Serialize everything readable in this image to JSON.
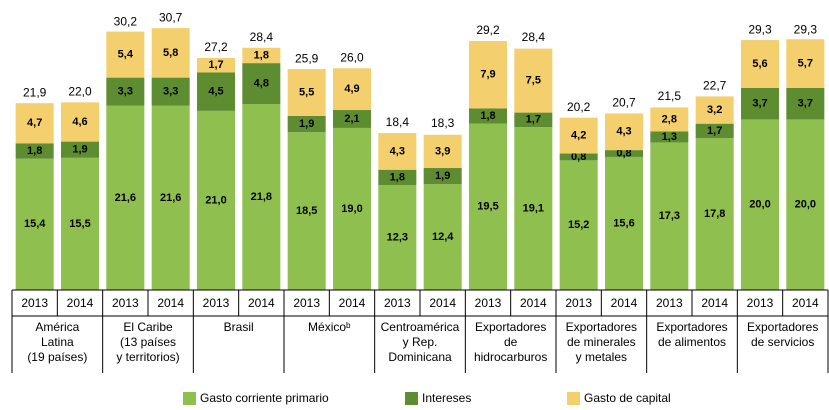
{
  "chart_data": {
    "type": "stacked_bar",
    "categories": [
      "2013",
      "2014",
      "2013",
      "2014",
      "2013",
      "2014",
      "2013",
      "2014",
      "2013",
      "2014",
      "2013",
      "2014",
      "2013",
      "2014",
      "2013",
      "2014",
      "2013",
      "2014"
    ],
    "groups": [
      [
        "América",
        "Latina",
        "(19 países)"
      ],
      [
        "El Caribe",
        "(13 países",
        "y territorios)"
      ],
      [
        "Brasil"
      ],
      [
        "Méxicoᵇ"
      ],
      [
        "Centroamérica",
        "y Rep.",
        "Dominicana"
      ],
      [
        "Exportadores",
        "de",
        "hidrocarburos"
      ],
      [
        "Exportadores",
        "de minerales",
        "y metales"
      ],
      [
        "Exportadores",
        "de alimentos"
      ],
      [
        "Exportadores",
        "de servicios"
      ]
    ],
    "series": [
      {
        "name": "Gasto corriente primario",
        "color": "#8fbf4f",
        "values": [
          15.4,
          15.5,
          21.6,
          21.6,
          21.0,
          21.8,
          18.5,
          19.0,
          12.3,
          12.4,
          19.5,
          19.1,
          15.2,
          15.6,
          17.3,
          17.8,
          20.0,
          20.0
        ],
        "value_labels": [
          "15,4",
          "15,5",
          "21,6",
          "21,6",
          "21,0",
          "21,8",
          "18,5",
          "19,0",
          "12,3",
          "12,4",
          "19,5",
          "19,1",
          "15,2",
          "15,6",
          "17,3",
          "17,8",
          "20,0",
          "20,0"
        ]
      },
      {
        "name": "Intereses",
        "color": "#5e8c31",
        "values": [
          1.8,
          1.9,
          3.3,
          3.3,
          4.5,
          4.8,
          1.9,
          2.1,
          1.8,
          1.9,
          1.8,
          1.7,
          0.8,
          0.8,
          1.3,
          1.7,
          3.7,
          3.7
        ],
        "value_labels": [
          "1,8",
          "1,9",
          "3,3",
          "3,3",
          "4,5",
          "4,8",
          "1,9",
          "2,1",
          "1,8",
          "1,9",
          "1,8",
          "1,7",
          "0,8",
          "0,8",
          "1,3",
          "1,7",
          "3,7",
          "3,7"
        ]
      },
      {
        "name": "Gasto de capital",
        "color": "#f4cf6e",
        "values": [
          4.7,
          4.6,
          5.4,
          5.8,
          1.7,
          1.8,
          5.5,
          4.9,
          4.3,
          3.9,
          7.9,
          7.5,
          4.2,
          4.3,
          2.8,
          3.2,
          5.6,
          5.7
        ],
        "value_labels": [
          "4,7",
          "4,6",
          "5,4",
          "5,8",
          "1,7",
          "1,8",
          "5,5",
          "4,9",
          "4,3",
          "3,9",
          "7,9",
          "7,5",
          "4,2",
          "4,3",
          "2,8",
          "3,2",
          "5,6",
          "5,7"
        ]
      }
    ],
    "totals": [
      21.9,
      22.0,
      30.2,
      30.7,
      27.2,
      28.4,
      25.9,
      26.0,
      18.4,
      18.3,
      29.2,
      28.4,
      20.2,
      20.7,
      21.5,
      22.7,
      29.3,
      29.3
    ],
    "total_labels": [
      "21,9",
      "22,0",
      "30,2",
      "30,7",
      "27,2",
      "28,4",
      "25,9",
      "26,0",
      "18,4",
      "18,3",
      "29,2",
      "28,4",
      "20,2",
      "20,7",
      "21,5",
      "22,7",
      "29,3",
      "29,3"
    ],
    "ylim": [
      0,
      34
    ],
    "legend": "bottom"
  }
}
